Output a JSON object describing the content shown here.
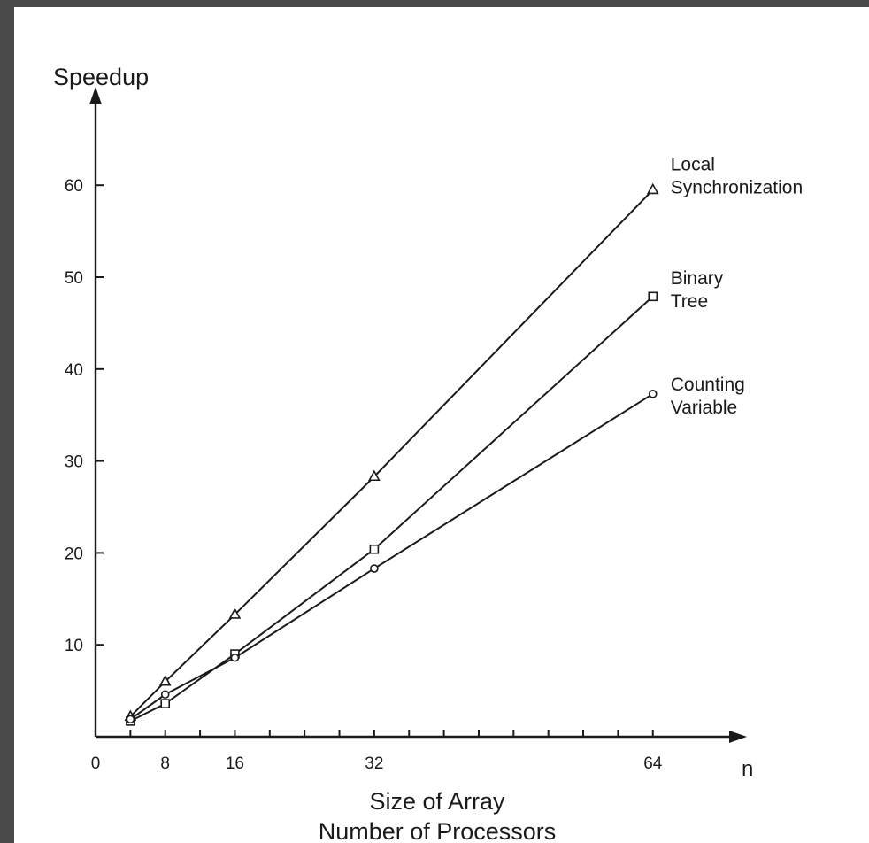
{
  "chart_data": {
    "type": "line",
    "ylabel": "Speedup",
    "xlabel_lines": [
      "Size of Array",
      "Number of Processors"
    ],
    "x_axis_symbol": "n",
    "xlim": [
      0,
      70
    ],
    "ylim": [
      0,
      68
    ],
    "x_ticks": [
      0,
      8,
      16,
      32,
      64
    ],
    "x_minor_ticks": [
      4,
      12,
      20,
      24,
      28,
      36,
      40,
      44,
      48,
      52,
      56,
      60
    ],
    "y_ticks": [
      10,
      20,
      30,
      40,
      50,
      60
    ],
    "series": [
      {
        "label_lines": [
          "Local",
          "Synchronization"
        ],
        "marker": "triangle",
        "points": [
          [
            4,
            2.2
          ],
          [
            8,
            6.0
          ],
          [
            16,
            13.3
          ],
          [
            32,
            28.3
          ],
          [
            64,
            59.5
          ]
        ]
      },
      {
        "label_lines": [
          "Binary",
          "Tree"
        ],
        "marker": "square",
        "points": [
          [
            4,
            1.7
          ],
          [
            8,
            3.6
          ],
          [
            16,
            9.0
          ],
          [
            32,
            20.4
          ],
          [
            64,
            47.9
          ]
        ]
      },
      {
        "label_lines": [
          "Counting",
          "Variable"
        ],
        "marker": "circle",
        "points": [
          [
            4,
            1.9
          ],
          [
            8,
            4.6
          ],
          [
            16,
            8.6
          ],
          [
            32,
            18.3
          ],
          [
            64,
            37.3
          ]
        ]
      }
    ]
  }
}
